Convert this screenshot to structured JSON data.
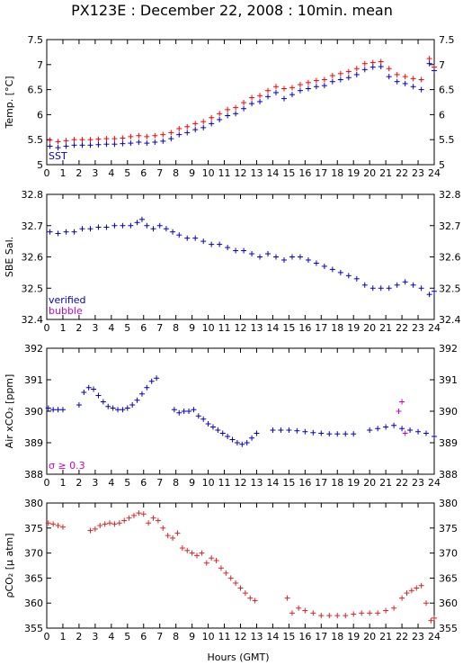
{
  "title": "PX123E : December 22, 2008 : 10min. mean",
  "x_axis": {
    "label": "Hours (GMT)",
    "min": 0,
    "max": 24,
    "ticks": [
      0,
      1,
      2,
      3,
      4,
      5,
      6,
      7,
      8,
      9,
      10,
      11,
      12,
      13,
      14,
      15,
      16,
      17,
      18,
      19,
      20,
      21,
      22,
      23,
      24
    ]
  },
  "colors": {
    "red": "#ff0000",
    "darkred": "#dd2222",
    "blue": "#0000cc",
    "magenta": "#cc00cc",
    "black": "#000000"
  },
  "chart_data": [
    {
      "id": "temp",
      "type": "scatter",
      "ylabel": "Temp. [°C]",
      "ylim": [
        5,
        7.5
      ],
      "yticks": [
        5,
        5.5,
        6,
        6.5,
        7,
        7.5
      ],
      "ytick_labels": [
        "5",
        "5.5",
        "6",
        "6.5",
        "7",
        "7.5"
      ],
      "legend": [
        {
          "text": "SST",
          "color": "#0000cc"
        }
      ],
      "series": [
        {
          "color": "#ff0000",
          "x": [
            0.2,
            0.7,
            1.2,
            1.7,
            2.2,
            2.7,
            3.2,
            3.7,
            4.2,
            4.7,
            5.2,
            5.7,
            6.2,
            6.7,
            7.2,
            7.7,
            8.2,
            8.7,
            9.2,
            9.7,
            10.2,
            10.7,
            11.2,
            11.7,
            12.2,
            12.7,
            13.2,
            13.7,
            14.2,
            14.7,
            15.2,
            15.7,
            16.2,
            16.7,
            17.2,
            17.7,
            18.2,
            18.7,
            19.2,
            19.7,
            20.2,
            20.7,
            21.2,
            21.7,
            22.2,
            22.7,
            23.2,
            23.7,
            24.0
          ],
          "y": [
            5.49,
            5.46,
            5.48,
            5.5,
            5.5,
            5.5,
            5.51,
            5.52,
            5.52,
            5.53,
            5.56,
            5.58,
            5.56,
            5.58,
            5.6,
            5.64,
            5.72,
            5.76,
            5.82,
            5.86,
            5.94,
            6.02,
            6.1,
            6.14,
            6.24,
            6.34,
            6.38,
            6.48,
            6.56,
            6.52,
            6.54,
            6.6,
            6.64,
            6.68,
            6.7,
            6.78,
            6.82,
            6.86,
            6.92,
            7.02,
            7.04,
            7.06,
            6.92,
            6.8,
            6.76,
            6.72,
            6.7,
            7.12,
            6.95
          ]
        },
        {
          "color": "#0000cc",
          "x": [
            0.2,
            0.7,
            1.2,
            1.7,
            2.2,
            2.7,
            3.2,
            3.7,
            4.2,
            4.7,
            5.2,
            5.7,
            6.2,
            6.7,
            7.2,
            7.7,
            8.2,
            8.7,
            9.2,
            9.7,
            10.2,
            10.7,
            11.2,
            11.7,
            12.2,
            12.7,
            13.2,
            13.7,
            14.2,
            14.7,
            15.2,
            15.7,
            16.2,
            16.7,
            17.2,
            17.7,
            18.2,
            18.7,
            19.2,
            19.7,
            20.2,
            20.7,
            21.2,
            21.7,
            22.2,
            22.7,
            23.2,
            23.7,
            24.0
          ],
          "y": [
            5.37,
            5.34,
            5.37,
            5.39,
            5.39,
            5.39,
            5.4,
            5.41,
            5.41,
            5.42,
            5.43,
            5.45,
            5.43,
            5.45,
            5.47,
            5.52,
            5.6,
            5.64,
            5.7,
            5.74,
            5.82,
            5.9,
            5.98,
            6.02,
            6.12,
            6.22,
            6.26,
            6.36,
            6.44,
            6.32,
            6.4,
            6.48,
            6.52,
            6.56,
            6.58,
            6.66,
            6.7,
            6.74,
            6.8,
            6.9,
            6.95,
            6.96,
            6.76,
            6.66,
            6.62,
            6.56,
            6.5,
            7.02,
            6.88
          ]
        }
      ]
    },
    {
      "id": "sal",
      "type": "scatter",
      "ylabel": "SBE Sal.",
      "ylim": [
        32.4,
        32.8
      ],
      "yticks": [
        32.4,
        32.5,
        32.6,
        32.7,
        32.8
      ],
      "ytick_labels": [
        "32.4",
        "32.5",
        "32.6",
        "32.7",
        "32.8"
      ],
      "legend": [
        {
          "text": "verified",
          "color": "#0000cc"
        },
        {
          "text": "bubble",
          "color": "#cc00cc"
        }
      ],
      "series": [
        {
          "color": "#0000cc",
          "x": [
            0.2,
            0.7,
            1.2,
            1.7,
            2.2,
            2.7,
            3.2,
            3.7,
            4.2,
            4.7,
            5.2,
            5.6,
            5.9,
            6.2,
            6.6,
            7.0,
            7.4,
            7.8,
            8.2,
            8.7,
            9.2,
            9.7,
            10.2,
            10.7,
            11.2,
            11.7,
            12.2,
            12.7,
            13.2,
            13.7,
            14.2,
            14.7,
            15.2,
            15.7,
            16.2,
            16.7,
            17.2,
            17.7,
            18.2,
            18.7,
            19.2,
            19.7,
            20.2,
            20.7,
            21.2,
            21.7,
            22.2,
            22.7,
            23.2,
            23.7,
            24.0
          ],
          "y": [
            32.68,
            32.675,
            32.68,
            32.68,
            32.69,
            32.69,
            32.695,
            32.695,
            32.7,
            32.7,
            32.7,
            32.71,
            32.72,
            32.7,
            32.69,
            32.7,
            32.69,
            32.68,
            32.67,
            32.66,
            32.66,
            32.65,
            32.64,
            32.64,
            32.63,
            32.62,
            32.62,
            32.61,
            32.6,
            32.61,
            32.6,
            32.59,
            32.6,
            32.6,
            32.59,
            32.58,
            32.57,
            32.56,
            32.55,
            32.54,
            32.53,
            32.51,
            32.5,
            32.5,
            32.5,
            32.51,
            32.52,
            32.51,
            32.5,
            32.48,
            32.49
          ]
        }
      ]
    },
    {
      "id": "air",
      "type": "scatter",
      "ylabel": "Air xCO₂ [ppm]",
      "ylim": [
        388,
        392
      ],
      "yticks": [
        388,
        389,
        390,
        391,
        392
      ],
      "ytick_labels": [
        "388",
        "389",
        "390",
        "391",
        "392"
      ],
      "legend": [
        {
          "text": "σ ≥ 0.3",
          "color": "#cc00cc"
        }
      ],
      "series": [
        {
          "color": "#0000cc",
          "x": [
            0.1,
            0.4,
            0.7,
            1.0,
            2.0,
            2.3,
            2.6,
            2.9,
            3.2,
            3.5,
            3.8,
            4.1,
            4.4,
            4.7,
            5.0,
            5.3,
            5.6,
            5.9,
            6.2,
            6.5,
            6.8,
            7.9,
            8.2,
            8.5,
            8.8,
            9.1,
            9.4,
            9.7,
            10.0,
            10.3,
            10.6,
            10.9,
            11.2,
            11.5,
            11.8,
            12.1,
            12.4,
            12.7,
            13.0,
            14.0,
            14.5,
            15.0,
            15.5,
            16.0,
            16.5,
            17.0,
            17.5,
            18.0,
            18.5,
            19.0,
            20.0,
            20.5,
            21.0,
            21.5,
            22.0,
            22.5,
            23.0,
            23.5,
            24.0
          ],
          "y": [
            390.1,
            390.05,
            390.05,
            390.05,
            390.2,
            390.6,
            390.75,
            390.7,
            390.5,
            390.3,
            390.15,
            390.1,
            390.05,
            390.05,
            390.1,
            390.2,
            390.35,
            390.55,
            390.75,
            390.95,
            391.05,
            390.05,
            389.95,
            390.0,
            390.0,
            390.05,
            389.85,
            389.75,
            389.6,
            389.5,
            389.4,
            389.3,
            389.2,
            389.1,
            389.0,
            388.95,
            389.0,
            389.15,
            389.3,
            389.4,
            389.4,
            389.4,
            389.38,
            389.35,
            389.32,
            389.3,
            389.28,
            389.28,
            389.28,
            389.28,
            389.4,
            389.45,
            389.5,
            389.55,
            389.45,
            389.4,
            389.35,
            389.3,
            389.2
          ]
        },
        {
          "color": "#cc00cc",
          "x": [
            21.8,
            22.0,
            22.2
          ],
          "y": [
            390.0,
            390.3,
            389.3
          ]
        }
      ]
    },
    {
      "id": "pco2",
      "type": "scatter",
      "ylabel": "ρCO₂ [µ atm]",
      "ylim": [
        355,
        380
      ],
      "yticks": [
        355,
        360,
        365,
        370,
        375,
        380
      ],
      "ytick_labels": [
        "355",
        "360",
        "365",
        "370",
        "375",
        "380"
      ],
      "legend": [],
      "series": [
        {
          "color": "#dd2222",
          "x": [
            0.1,
            0.4,
            0.7,
            1.0,
            2.7,
            3.0,
            3.3,
            3.6,
            3.9,
            4.2,
            4.5,
            4.8,
            5.1,
            5.4,
            5.7,
            6.0,
            6.3,
            6.6,
            6.9,
            7.2,
            7.5,
            7.8,
            8.1,
            8.4,
            8.7,
            9.0,
            9.3,
            9.6,
            9.9,
            10.2,
            10.5,
            10.8,
            11.1,
            11.4,
            11.7,
            12.0,
            12.3,
            12.6,
            12.9,
            14.9,
            15.2,
            15.6,
            16.0,
            16.5,
            17.0,
            17.5,
            18.0,
            18.5,
            19.0,
            19.5,
            20.0,
            20.5,
            21.0,
            21.5,
            22.0,
            22.3,
            22.6,
            22.9,
            23.2,
            23.5,
            23.8,
            24.0
          ],
          "y": [
            376.0,
            375.8,
            375.5,
            375.2,
            374.5,
            374.8,
            375.5,
            375.8,
            376.0,
            375.8,
            376.0,
            376.5,
            377.0,
            377.5,
            378.0,
            377.8,
            376.0,
            377.0,
            376.5,
            375.0,
            373.5,
            373.0,
            374.0,
            371.0,
            370.5,
            370.0,
            369.5,
            370.0,
            368.0,
            369.0,
            368.5,
            367.0,
            366.0,
            365.0,
            364.0,
            363.0,
            362.0,
            361.0,
            360.5,
            361.0,
            358.0,
            359.0,
            358.5,
            358.0,
            357.5,
            357.5,
            357.5,
            357.5,
            357.8,
            358.0,
            358.0,
            358.0,
            358.5,
            359.0,
            361.0,
            362.0,
            362.5,
            363.0,
            363.5,
            360.0,
            356.5,
            357.0
          ]
        }
      ]
    }
  ]
}
